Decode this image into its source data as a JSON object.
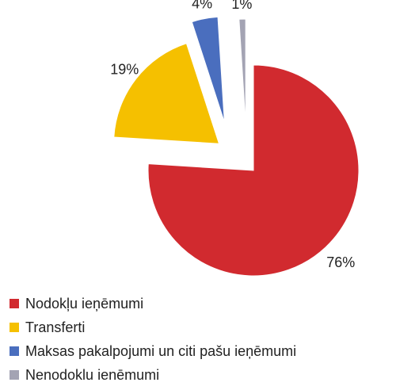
{
  "chart_data": {
    "type": "pie",
    "categories": [
      "Nodokļu ieņēmumi",
      "Transferti",
      "Maksas pakalpojumi un citi pašu ieņēmumi",
      "Nenodoklu ienēmumi"
    ],
    "values": [
      76,
      19,
      4,
      1
    ],
    "value_labels": [
      "76%",
      "19%",
      "4%",
      "1%"
    ],
    "colors": [
      "#d12a2f",
      "#f5c000",
      "#4a6ebe",
      "#a3a3b3"
    ],
    "legend": "bottom"
  }
}
